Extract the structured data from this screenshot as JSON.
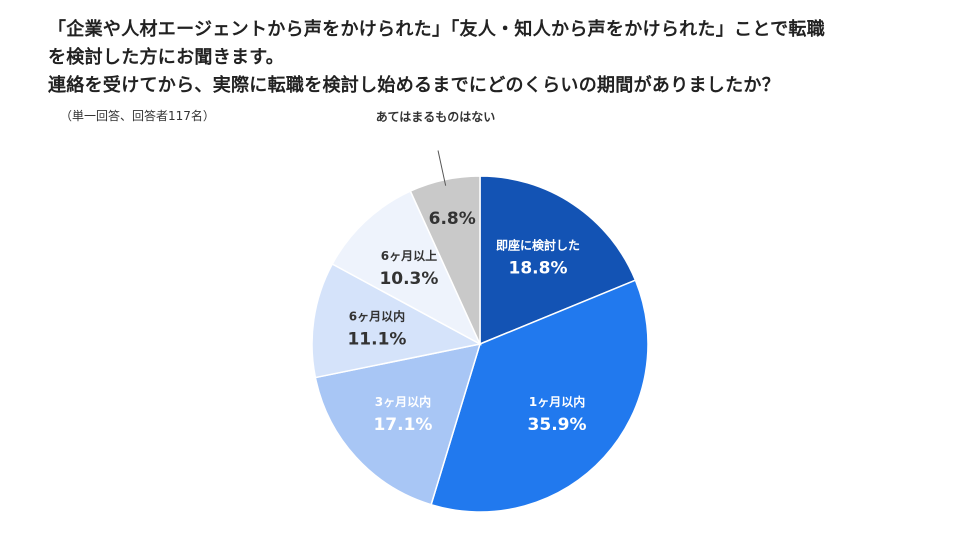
{
  "title_lines": [
    "「企業や人材エージェントから声をかけられた」「友人・知人から声をかけられた」ことで転職",
    "を検討した方にお聞きます。",
    "連絡を受けてから、実際に転職を検討し始めるまでにどのくらいの期間がありましたか？"
  ],
  "note": "（単一回答、回答者117名）",
  "chart_data": {
    "type": "pie",
    "title": "",
    "start": "12 o'clock",
    "direction": "clockwise",
    "slices": [
      {
        "label": "即座に検討した",
        "value": 18.8,
        "value_label": "18.8%",
        "color": "#1353B4",
        "text_color": "#ffffff"
      },
      {
        "label": "1ヶ月以内",
        "value": 35.9,
        "value_label": "35.9%",
        "color": "#2179EE",
        "text_color": "#ffffff"
      },
      {
        "label": "3ヶ月以内",
        "value": 17.1,
        "value_label": "17.1%",
        "color": "#A8C6F5",
        "text_color": "#ffffff"
      },
      {
        "label": "6ヶ月以内",
        "value": 11.1,
        "value_label": "11.1%",
        "color": "#D5E3FA",
        "text_color": "#333333"
      },
      {
        "label": "6ヶ月以上",
        "value": 10.3,
        "value_label": "10.3%",
        "color": "#EEF3FC",
        "text_color": "#333333"
      },
      {
        "label": "あてはまるものはない",
        "value": 6.8,
        "value_label": "6.8%",
        "color": "#C9C9C9",
        "text_color": "#333333",
        "label_outside": true
      }
    ]
  }
}
